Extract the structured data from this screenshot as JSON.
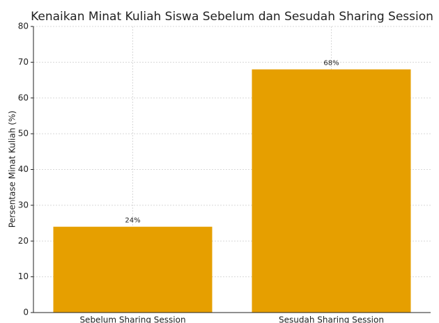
{
  "chart_data": {
    "type": "bar",
    "title": "Kenaikan Minat Kuliah Siswa Sebelum dan Sesudah Sharing Session",
    "y_label": "Persentase Minat Kuliah (%)",
    "categories": [
      "Sebelum Sharing Session",
      "Sesudah Sharing Session"
    ],
    "values": [
      24,
      68
    ],
    "value_labels": [
      "24%",
      "68%"
    ],
    "color": "#e69f00",
    "ylim": [
      0,
      80
    ],
    "yticks": [
      0,
      10,
      20,
      30,
      40,
      50,
      60,
      70,
      80
    ],
    "grid": true
  }
}
